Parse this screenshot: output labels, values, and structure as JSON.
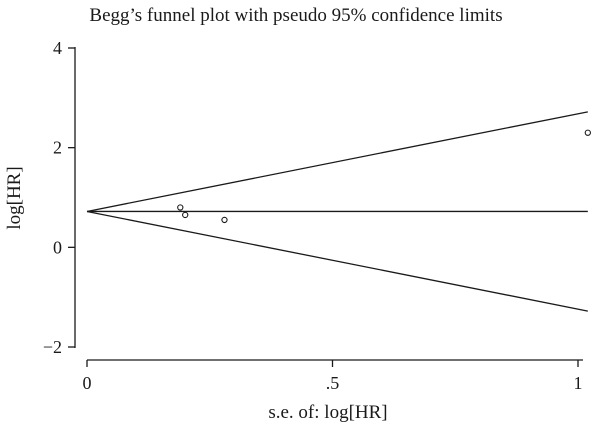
{
  "chart_data": {
    "type": "scatter",
    "title": "Begg’s funnel plot with pseudo 95% confidence limits",
    "xlabel": "s.e. of: log[HR]",
    "ylabel": "log[HR]",
    "xlim": [
      0,
      1.02
    ],
    "ylim": [
      -2,
      4
    ],
    "x_ticks": [
      0,
      0.5,
      1
    ],
    "x_tick_labels": [
      "0",
      ".5",
      "1"
    ],
    "y_ticks": [
      -2,
      0,
      2,
      4
    ],
    "y_tick_labels": [
      "−2",
      "0",
      "2",
      "4"
    ],
    "grid": false,
    "points": [
      {
        "x": 0.19,
        "y": 0.8
      },
      {
        "x": 0.2,
        "y": 0.65
      },
      {
        "x": 0.28,
        "y": 0.55
      },
      {
        "x": 1.02,
        "y": 2.3
      }
    ],
    "pooled_estimate": 0.72,
    "confidence_limits": "pseudo 95%",
    "confidence_multiplier": 1.96,
    "colors": {
      "ink": "#1a1a1a",
      "background": "#ffffff"
    }
  }
}
